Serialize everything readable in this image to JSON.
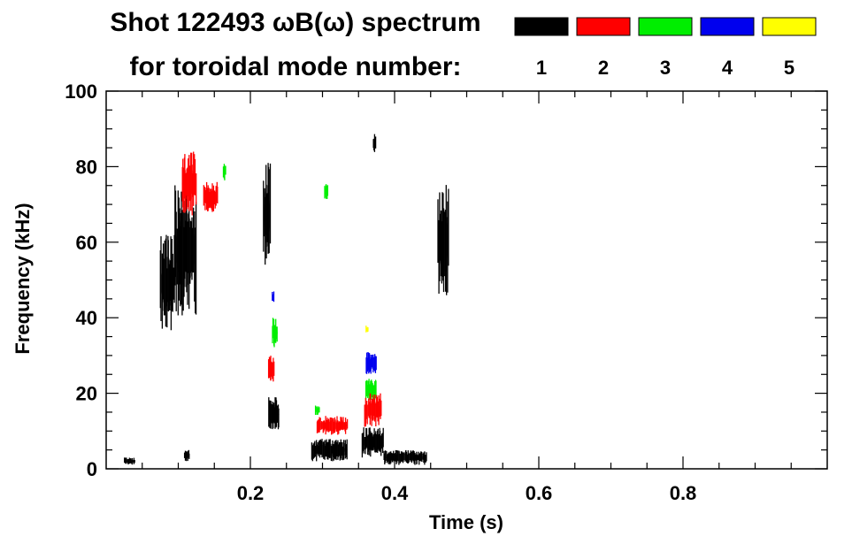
{
  "chart_data": {
    "type": "heatmap",
    "title_line1": "Shot 122493 ωB(ω) spectrum",
    "title_line2": "for toroidal mode number:",
    "xlabel": "Time (s)",
    "ylabel": "Frequency (kHz)",
    "xlim": [
      0.0,
      1.0
    ],
    "ylim": [
      0,
      100
    ],
    "x_ticks": [
      0.2,
      0.4,
      0.6,
      0.8
    ],
    "x_tick_labels": [
      "0.2",
      "0.4",
      "0.6",
      "0.8"
    ],
    "y_ticks": [
      0,
      20,
      40,
      60,
      80,
      100
    ],
    "y_tick_labels": [
      "0",
      "20",
      "40",
      "60",
      "80",
      "100"
    ],
    "legend": [
      {
        "label": "1",
        "color": "#000000"
      },
      {
        "label": "2",
        "color": "#ff0000"
      },
      {
        "label": "3",
        "color": "#00ee00"
      },
      {
        "label": "4",
        "color": "#0000ee"
      },
      {
        "label": "5",
        "color": "#ffff00"
      }
    ],
    "legend_placement": "top-right",
    "grid": false,
    "features": [
      {
        "mode": 1,
        "t_start": 0.075,
        "t_end": 0.095,
        "f_low": 36,
        "f_high": 62
      },
      {
        "mode": 1,
        "t_start": 0.095,
        "t_end": 0.125,
        "f_low": 40,
        "f_high": 76
      },
      {
        "mode": 2,
        "t_start": 0.105,
        "t_end": 0.125,
        "f_low": 67,
        "f_high": 84
      },
      {
        "mode": 2,
        "t_start": 0.135,
        "t_end": 0.155,
        "f_low": 68,
        "f_high": 76
      },
      {
        "mode": 3,
        "t_start": 0.162,
        "t_end": 0.166,
        "f_low": 76,
        "f_high": 82
      },
      {
        "mode": 1,
        "t_start": 0.218,
        "t_end": 0.228,
        "f_low": 52,
        "f_high": 82
      },
      {
        "mode": 4,
        "t_start": 0.23,
        "t_end": 0.233,
        "f_low": 44,
        "f_high": 47
      },
      {
        "mode": 3,
        "t_start": 0.23,
        "t_end": 0.238,
        "f_low": 32,
        "f_high": 40
      },
      {
        "mode": 2,
        "t_start": 0.225,
        "t_end": 0.233,
        "f_low": 23,
        "f_high": 30
      },
      {
        "mode": 1,
        "t_start": 0.225,
        "t_end": 0.24,
        "f_low": 10,
        "f_high": 19
      },
      {
        "mode": 3,
        "t_start": 0.303,
        "t_end": 0.308,
        "f_low": 71,
        "f_high": 76
      },
      {
        "mode": 3,
        "t_start": 0.29,
        "t_end": 0.296,
        "f_low": 14,
        "f_high": 17
      },
      {
        "mode": 2,
        "t_start": 0.292,
        "t_end": 0.335,
        "f_low": 9,
        "f_high": 14
      },
      {
        "mode": 1,
        "t_start": 0.285,
        "t_end": 0.335,
        "f_low": 2,
        "f_high": 8
      },
      {
        "mode": 5,
        "t_start": 0.36,
        "t_end": 0.364,
        "f_low": 36,
        "f_high": 38
      },
      {
        "mode": 4,
        "t_start": 0.36,
        "t_end": 0.375,
        "f_low": 25,
        "f_high": 31
      },
      {
        "mode": 3,
        "t_start": 0.36,
        "t_end": 0.375,
        "f_low": 18,
        "f_high": 24
      },
      {
        "mode": 2,
        "t_start": 0.358,
        "t_end": 0.382,
        "f_low": 11,
        "f_high": 20
      },
      {
        "mode": 1,
        "t_start": 0.355,
        "t_end": 0.385,
        "f_low": 3,
        "f_high": 11
      },
      {
        "mode": 1,
        "t_start": 0.385,
        "t_end": 0.445,
        "f_low": 1,
        "f_high": 5
      },
      {
        "mode": 1,
        "t_start": 0.37,
        "t_end": 0.374,
        "f_low": 83,
        "f_high": 89
      },
      {
        "mode": 1,
        "t_start": 0.46,
        "t_end": 0.475,
        "f_low": 45,
        "f_high": 76
      },
      {
        "mode": 1,
        "t_start": 0.025,
        "t_end": 0.04,
        "f_low": 1,
        "f_high": 3
      },
      {
        "mode": 1,
        "t_start": 0.108,
        "t_end": 0.116,
        "f_low": 2,
        "f_high": 5
      }
    ]
  }
}
